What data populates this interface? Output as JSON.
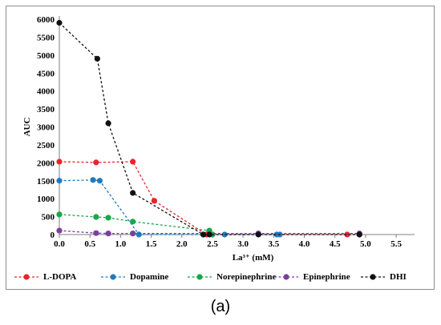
{
  "chart_data": {
    "type": "line",
    "xlabel": "La³⁺ (mM)",
    "ylabel": "AUC",
    "xlim": [
      0,
      5.8
    ],
    "ylim": [
      0,
      6000
    ],
    "xticks": [
      "0.0",
      "0.5",
      "1.0",
      "1.5",
      "2.0",
      "2.5",
      "3.0",
      "3.5",
      "4.0",
      "4.5",
      "5.0",
      "5.5"
    ],
    "yticks": [
      "0",
      "500",
      "1000",
      "1500",
      "2000",
      "2500",
      "3000",
      "3500",
      "4000",
      "4500",
      "5000",
      "5500",
      "6000"
    ],
    "grid": false,
    "legend_position": "bottom",
    "series": [
      {
        "name": "L-DOPA",
        "color": "#e8242a",
        "x": [
          0.0,
          0.6,
          1.2,
          1.55,
          2.4,
          4.7,
          4.9
        ],
        "y": [
          2030,
          2010,
          2030,
          940,
          0,
          0,
          0
        ]
      },
      {
        "name": "Dopamine",
        "color": "#1f7bc1",
        "x": [
          0.0,
          0.55,
          0.66,
          1.3,
          2.7,
          3.55,
          3.6
        ],
        "y": [
          1500,
          1520,
          1500,
          0,
          0,
          0,
          0
        ]
      },
      {
        "name": "Norepinephrine",
        "color": "#1aa64b",
        "x": [
          0.0,
          0.6,
          0.8,
          1.2,
          2.45,
          2.5
        ],
        "y": [
          560,
          490,
          470,
          360,
          110,
          0
        ]
      },
      {
        "name": "Epinephrine",
        "color": "#7b3fa0",
        "x": [
          0.0,
          0.6,
          0.8,
          1.2,
          3.25,
          4.9
        ],
        "y": [
          110,
          40,
          30,
          30,
          30,
          30
        ]
      },
      {
        "name": "DHI",
        "color": "#111111",
        "x": [
          0.0,
          0.62,
          0.8,
          1.2,
          2.35,
          2.45,
          3.25,
          4.9
        ],
        "y": [
          5900,
          4900,
          3100,
          1160,
          0,
          0,
          0,
          0
        ]
      }
    ]
  },
  "panel_label": "(a)"
}
